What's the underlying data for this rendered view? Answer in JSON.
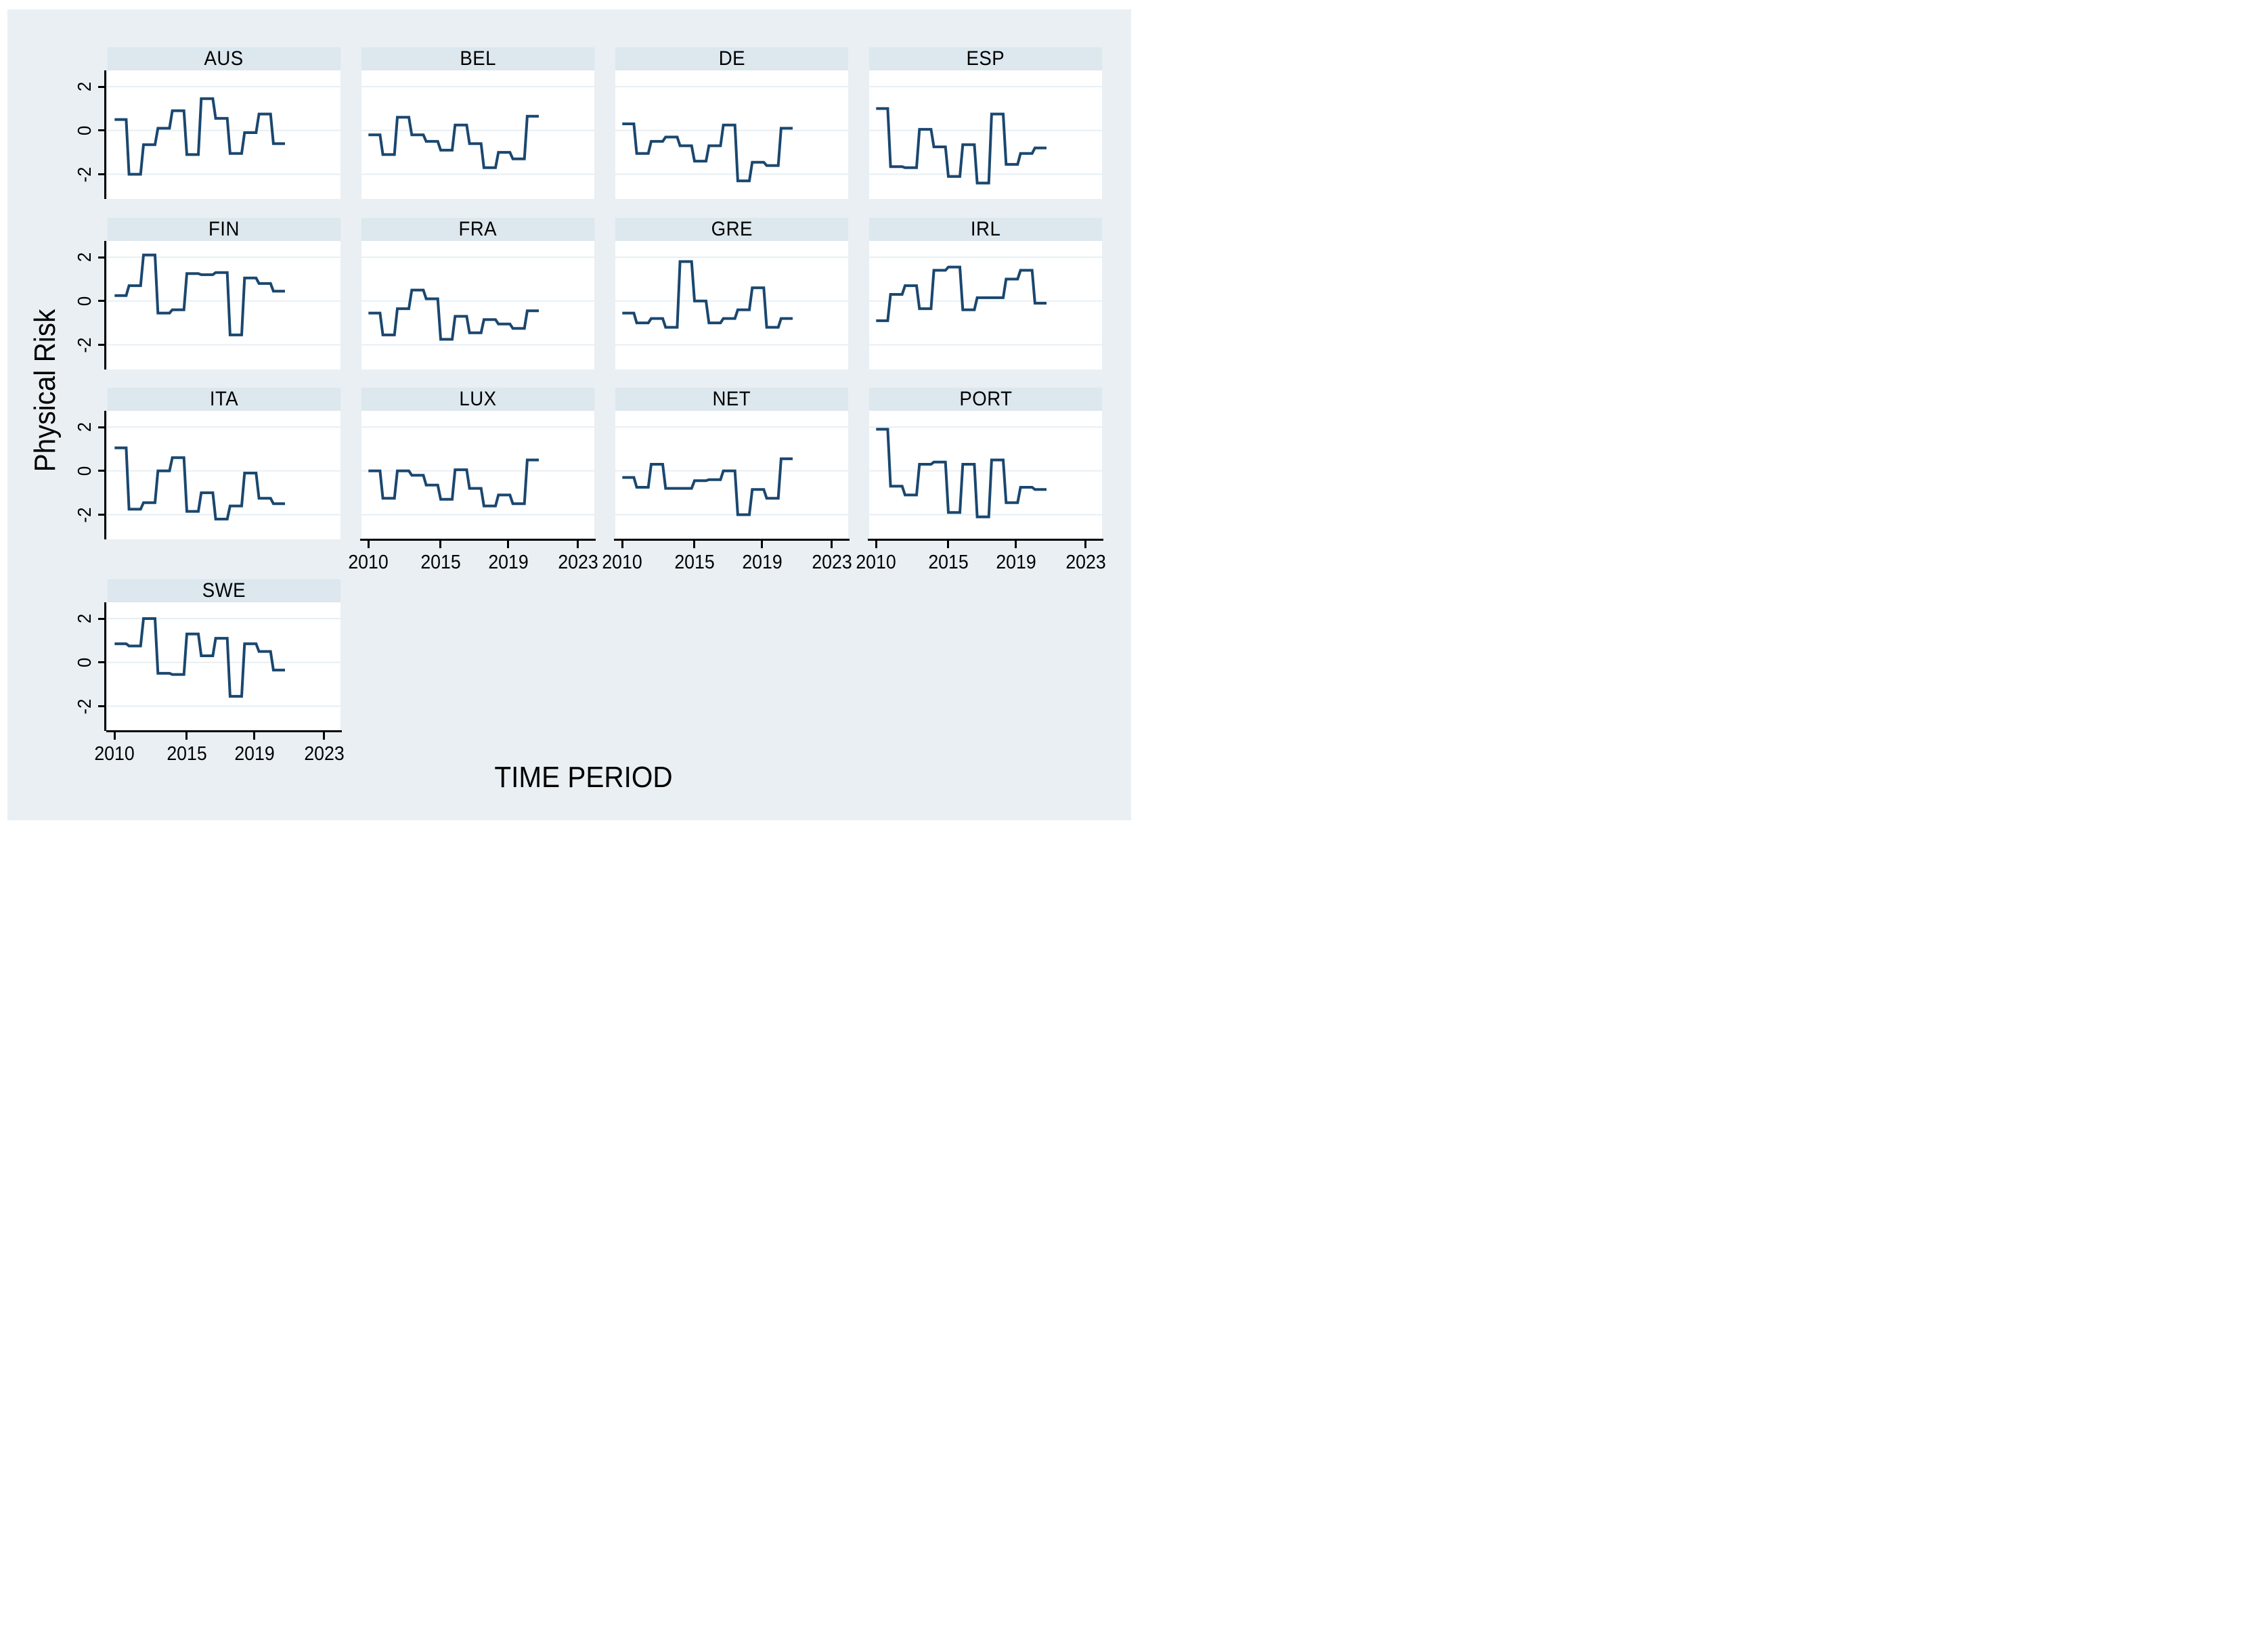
{
  "figure": {
    "background_color": "#e9eff3",
    "strip_color": "#dce7ee",
    "panel_background": "#ffffff",
    "gridline_color": "#e7eff4",
    "line_color": "#1a476f",
    "axis_color": "#000000"
  },
  "chart_data": {
    "type": "line",
    "subtype": "step-line small multiples by country",
    "title": "",
    "xlabel": "TIME PERIOD",
    "ylabel": "Physical Risk",
    "legend": "none",
    "grid": true,
    "facet_columns": 4,
    "x": [
      2010,
      2011,
      2012,
      2013,
      2014,
      2015,
      2016,
      2017,
      2018,
      2019,
      2020,
      2021
    ],
    "x_tick_labels": [
      "2010",
      "2015",
      "2019",
      "2023"
    ],
    "y_tick_labels": [
      "2",
      "0",
      "-2"
    ],
    "y_ticks": [
      2,
      0,
      -2
    ],
    "ylim": [
      -3.1,
      2.75
    ],
    "xlim_years": [
      2010,
      2023
    ],
    "series": [
      {
        "name": "AUS",
        "values": [
          0.5,
          -2.0,
          -0.65,
          0.1,
          0.9,
          -1.1,
          1.45,
          0.55,
          -1.05,
          -0.1,
          0.75,
          -0.6
        ]
      },
      {
        "name": "BEL",
        "values": [
          -0.2,
          -1.1,
          0.6,
          -0.2,
          -0.5,
          -0.9,
          0.25,
          -0.6,
          -1.7,
          -1.0,
          -1.3,
          0.65
        ]
      },
      {
        "name": "DE",
        "values": [
          0.3,
          -1.05,
          -0.5,
          -0.3,
          -0.7,
          -1.4,
          -0.7,
          0.25,
          -2.3,
          -1.45,
          -1.6,
          0.1
        ]
      },
      {
        "name": "ESP",
        "values": [
          1.0,
          -1.65,
          -1.7,
          0.05,
          -0.75,
          -2.1,
          -0.65,
          -2.4,
          0.75,
          -1.55,
          -1.05,
          -0.8
        ]
      },
      {
        "name": "FIN",
        "values": [
          0.25,
          0.7,
          2.1,
          -0.55,
          -0.4,
          1.25,
          1.2,
          1.3,
          -1.55,
          1.05,
          0.8,
          0.45
        ]
      },
      {
        "name": "FRA",
        "values": [
          -0.55,
          -1.55,
          -0.35,
          0.5,
          0.1,
          -1.75,
          -0.7,
          -1.45,
          -0.85,
          -1.05,
          -1.25,
          -0.45
        ]
      },
      {
        "name": "GRE",
        "values": [
          -0.55,
          -1.0,
          -0.8,
          -1.2,
          1.8,
          0.0,
          -1.0,
          -0.8,
          -0.4,
          0.6,
          -1.2,
          -0.8
        ]
      },
      {
        "name": "IRL",
        "values": [
          -0.9,
          0.3,
          0.7,
          -0.35,
          1.4,
          1.55,
          -0.4,
          0.15,
          0.15,
          1.0,
          1.4,
          -0.1
        ]
      },
      {
        "name": "ITA",
        "values": [
          1.05,
          -1.75,
          -1.45,
          0.0,
          0.6,
          -1.85,
          -1.0,
          -2.2,
          -1.6,
          -0.1,
          -1.25,
          -1.5
        ]
      },
      {
        "name": "LUX",
        "values": [
          0.0,
          -1.25,
          0.0,
          -0.2,
          -0.65,
          -1.3,
          0.05,
          -0.8,
          -1.6,
          -1.1,
          -1.5,
          0.5
        ]
      },
      {
        "name": "NET",
        "values": [
          -0.3,
          -0.75,
          0.3,
          -0.8,
          -0.8,
          -0.45,
          -0.4,
          0.0,
          -2.0,
          -0.85,
          -1.25,
          0.55
        ]
      },
      {
        "name": "PORT",
        "values": [
          1.9,
          -0.7,
          -1.1,
          0.3,
          0.4,
          -1.9,
          0.3,
          -2.1,
          0.5,
          -1.45,
          -0.75,
          -0.85
        ]
      },
      {
        "name": "SWE",
        "values": [
          0.85,
          0.75,
          2.0,
          -0.5,
          -0.55,
          1.3,
          0.3,
          1.1,
          -1.55,
          0.85,
          0.5,
          -0.35
        ]
      }
    ]
  }
}
